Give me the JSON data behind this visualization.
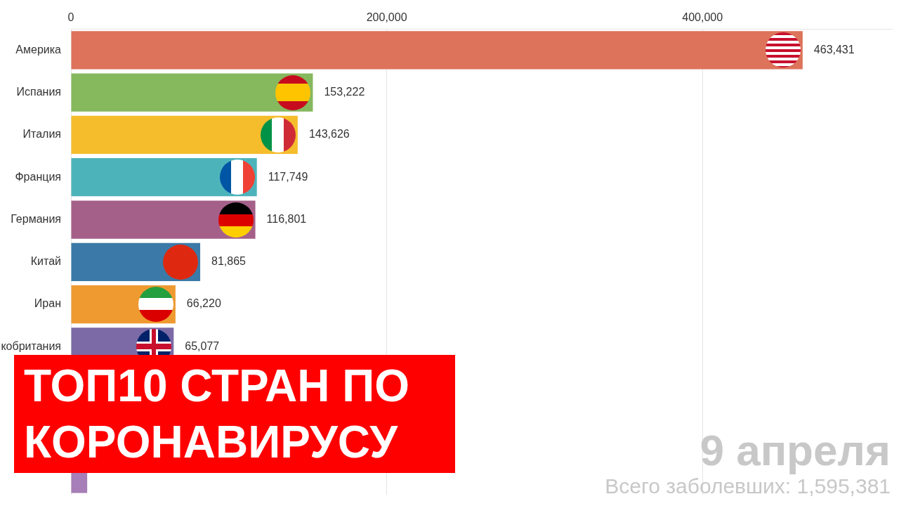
{
  "chart_data": {
    "type": "bar",
    "orientation": "horizontal",
    "title": "ТОП10 СТРАН ПО КОРОНАВИРУСУ",
    "categories": [
      "Америка",
      "Испания",
      "Италия",
      "Франция",
      "Германия",
      "Китай",
      "Иран",
      "кобритания",
      null,
      null,
      null
    ],
    "values": [
      463431,
      153222,
      143626,
      117749,
      116801,
      81865,
      66220,
      65077,
      null,
      null,
      10300
    ],
    "value_labels": [
      "463,431",
      "153,222",
      "143,626",
      "117,749",
      "116,801",
      "81,865",
      "66,220",
      "65,077",
      null,
      null,
      null
    ],
    "colors": [
      "#dc735a",
      "#86b85e",
      "#f5bd2c",
      "#4db3bb",
      "#a5608a",
      "#3b7aa8",
      "#ee9a30",
      "#7b6aa6",
      "#8a8a8a",
      "#8a8a8a",
      "#a77eb8"
    ],
    "xlim": [
      0,
      520000
    ],
    "xticks": [
      0,
      {
        "value": 200000,
        "label": "200,000"
      },
      {
        "value": 400000,
        "label": "400,000"
      }
    ],
    "grid": "x",
    "legend": false,
    "annotations": [
      "9 апреля",
      "Всего заболевших: 1,595,381"
    ]
  }
}
